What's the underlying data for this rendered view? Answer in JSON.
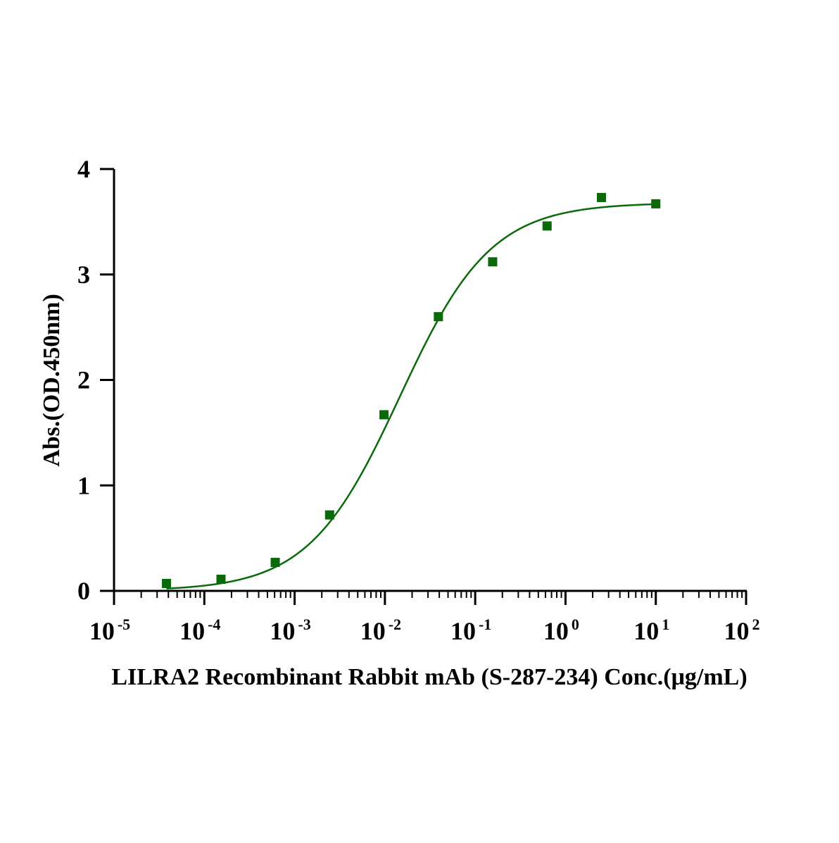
{
  "chart_data": {
    "type": "scatter",
    "xscale": "log",
    "xlim": [
      1e-05,
      100
    ],
    "ylim": [
      0,
      4
    ],
    "grid": false,
    "legend": "none",
    "xlabel": "LILRA2 Recombinant Rabbit mAb (S-287-234)  Conc.(μg/mL)",
    "ylabel": "Abs.(OD.450nm)",
    "xticks": [
      {
        "base": "10",
        "exp": "-5",
        "value": 1e-05
      },
      {
        "base": "10",
        "exp": "-4",
        "value": 0.0001
      },
      {
        "base": "10",
        "exp": "-3",
        "value": 0.001
      },
      {
        "base": "10",
        "exp": "-2",
        "value": 0.01
      },
      {
        "base": "10",
        "exp": "-1",
        "value": 0.1
      },
      {
        "base": "10",
        "exp": "0",
        "value": 1
      },
      {
        "base": "10",
        "exp": "1",
        "value": 10
      },
      {
        "base": "10",
        "exp": "2",
        "value": 100
      }
    ],
    "yticks": [
      {
        "label": "0",
        "value": 0
      },
      {
        "label": "1",
        "value": 1
      },
      {
        "label": "2",
        "value": 2
      },
      {
        "label": "3",
        "value": 3
      },
      {
        "label": "4",
        "value": 4
      }
    ],
    "series": [
      {
        "x": [
          3.81e-05,
          0.000153,
          0.00061,
          0.00244,
          0.00977,
          0.0391,
          0.156,
          0.625,
          2.5,
          10
        ],
        "y": [
          0.07,
          0.11,
          0.27,
          0.72,
          1.67,
          2.6,
          3.12,
          3.46,
          3.73,
          3.67
        ],
        "color": "#0a6a0a",
        "marker": "square",
        "fit": "4PL sigmoid"
      }
    ],
    "fit_curve": {
      "bottom": 0.0,
      "top": 3.68,
      "ec50": 0.0146,
      "hill": 0.86,
      "x_range": [
        3.81e-05,
        10
      ],
      "color": "#0a6a0a"
    }
  }
}
